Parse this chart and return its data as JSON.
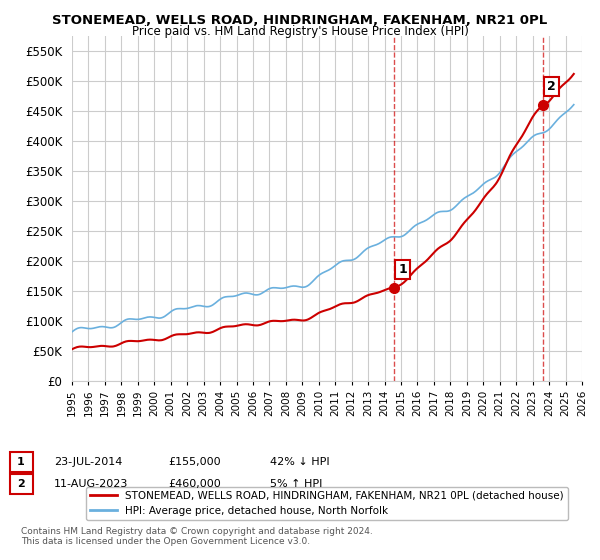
{
  "title": "STONEMEAD, WELLS ROAD, HINDRINGHAM, FAKENHAM, NR21 0PL",
  "subtitle": "Price paid vs. HM Land Registry's House Price Index (HPI)",
  "ylabel": "",
  "ylim": [
    0,
    575000
  ],
  "yticks": [
    0,
    50000,
    100000,
    150000,
    200000,
    250000,
    300000,
    350000,
    400000,
    450000,
    500000,
    550000
  ],
  "ytick_labels": [
    "£0",
    "£50K",
    "£100K",
    "£150K",
    "£200K",
    "£250K",
    "£300K",
    "£350K",
    "£400K",
    "£450K",
    "£500K",
    "£550K"
  ],
  "hpi_color": "#6ab0de",
  "price_color": "#cc0000",
  "vline_color": "#cc0000",
  "grid_color": "#cccccc",
  "bg_color": "#ffffff",
  "sale1_x": 2014.55,
  "sale1_y": 155000,
  "sale1_label": "1",
  "sale2_x": 2023.6,
  "sale2_y": 460000,
  "sale2_label": "2",
  "legend_line1": "STONEMEAD, WELLS ROAD, HINDRINGHAM, FAKENHAM, NR21 0PL (detached house)",
  "legend_line2": "HPI: Average price, detached house, North Norfolk",
  "annotation1": "1    23-JUL-2014         £155,000        42% ↓ HPI",
  "annotation2": "2    11-AUG-2023         £460,000          5% ↑ HPI",
  "footnote": "Contains HM Land Registry data © Crown copyright and database right 2024.\nThis data is licensed under the Open Government Licence v3.0.",
  "xmin": 1995,
  "xmax": 2026
}
